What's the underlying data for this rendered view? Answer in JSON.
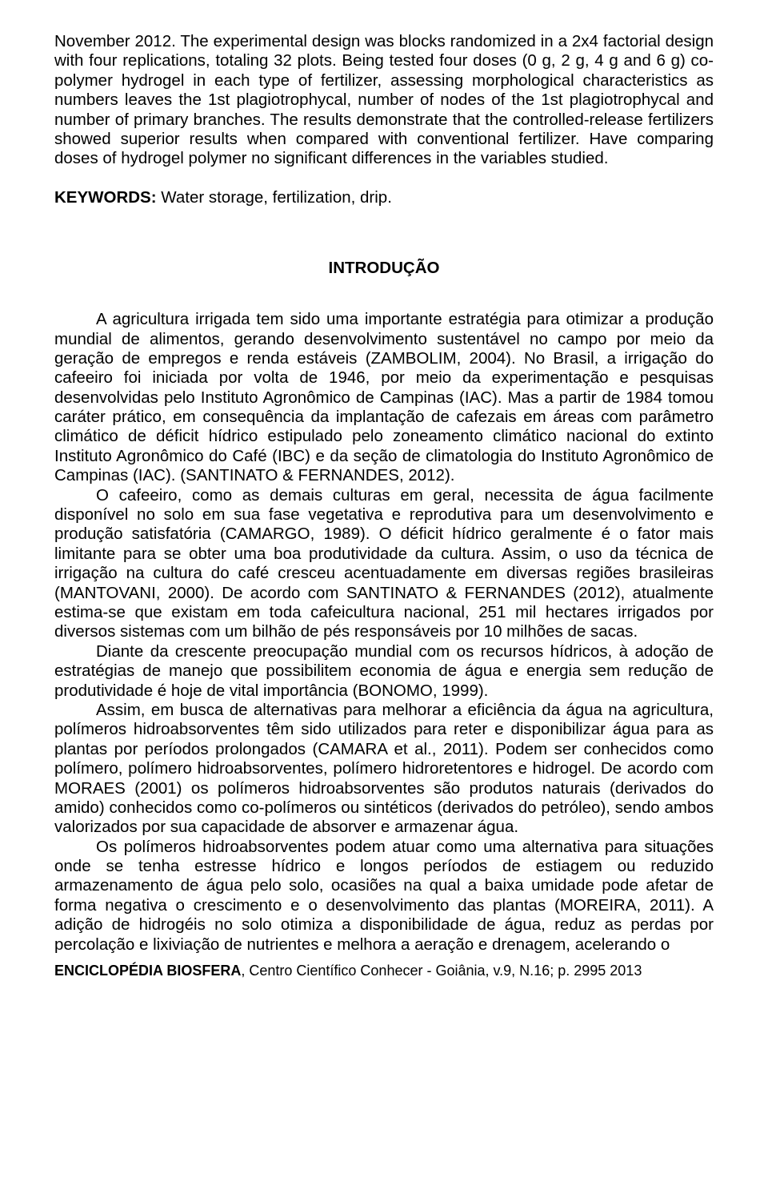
{
  "abstract": {
    "p1": "November 2012. The experimental design was blocks randomized in a 2x4 factorial design with four replications, totaling 32 plots. Being tested four doses (0 g, 2 g, 4 g and 6 g) co-polymer hydrogel in each type of fertilizer, assessing morphological characteristics as numbers leaves the 1st plagiotrophycal, number of nodes of the 1st plagiotrophycal and number of primary branches. The results demonstrate that the controlled-release fertilizers showed superior results when compared with conventional fertilizer. Have comparing doses of hydrogel polymer no significant differences in the variables studied."
  },
  "keywords": {
    "label": "KEYWORDS:",
    "text": " Water storage, fertilization, drip."
  },
  "section": {
    "title": "INTRODUÇÃO"
  },
  "body": {
    "p1": "A agricultura irrigada tem sido uma importante estratégia para otimizar a produção mundial de alimentos, gerando desenvolvimento sustentável no campo por meio da geração de empregos e renda estáveis (ZAMBOLIM, 2004). No Brasil, a irrigação do cafeeiro foi iniciada por volta de 1946, por meio da experimentação e pesquisas desenvolvidas pelo Instituto Agronômico de Campinas (IAC). Mas a partir de 1984 tomou caráter prático, em consequência da implantação de cafezais em áreas com parâmetro climático de déficit hídrico estipulado pelo zoneamento climático nacional do extinto Instituto Agronômico do Café (IBC) e da seção de climatologia do Instituto Agronômico de Campinas (IAC). (SANTINATO & FERNANDES, 2012).",
    "p2": "O cafeeiro, como as demais culturas em geral, necessita de água facilmente disponível no solo em sua fase vegetativa e reprodutiva para um desenvolvimento e produção satisfatória (CAMARGO, 1989). O déficit hídrico geralmente é o fator mais limitante para se obter uma boa produtividade da cultura. Assim, o uso da técnica de irrigação na cultura do café cresceu acentuadamente em diversas regiões brasileiras (MANTOVANI, 2000). De acordo com SANTINATO & FERNANDES (2012), atualmente estima-se que existam em toda cafeicultura nacional, 251 mil hectares irrigados por diversos sistemas com um bilhão de pés responsáveis por 10 milhões de sacas.",
    "p3": "Diante da crescente preocupação mundial com os recursos hídricos, à adoção de estratégias de manejo que possibilitem economia de água e energia sem redução de produtividade é hoje de vital importância (BONOMO, 1999).",
    "p4": "Assim, em busca de alternativas para melhorar a eficiência da água na agricultura, polímeros hidroabsorventes têm sido utilizados para reter e disponibilizar água para as plantas por períodos prolongados (CAMARA et al., 2011). Podem ser conhecidos como polímero, polímero hidroabsorventes, polímero hidroretentores e hidrogel. De acordo com MORAES (2001) os polímeros hidroabsorventes são produtos naturais (derivados do amido) conhecidos como co-polímeros ou sintéticos (derivados do petróleo), sendo ambos valorizados por sua capacidade de absorver e armazenar água.",
    "p5": "Os polímeros hidroabsorventes podem atuar como uma alternativa para situações onde se tenha estresse hídrico e longos períodos de estiagem ou reduzido armazenamento de água pelo solo, ocasiões na qual a baixa umidade pode afetar de forma negativa o crescimento e o desenvolvimento das plantas (MOREIRA, 2011). A adição de hidrogéis no solo otimiza a disponibilidade de água, reduz as perdas por percolação e lixiviação de nutrientes e melhora a aeração e drenagem, acelerando o"
  },
  "footer": {
    "bold": "ENCICLOPÉDIA BIOSFERA",
    "rest": ", Centro Científico Conhecer - Goiânia, v.9, N.16; p. ",
    "page": "2995",
    "year": "   2013"
  }
}
